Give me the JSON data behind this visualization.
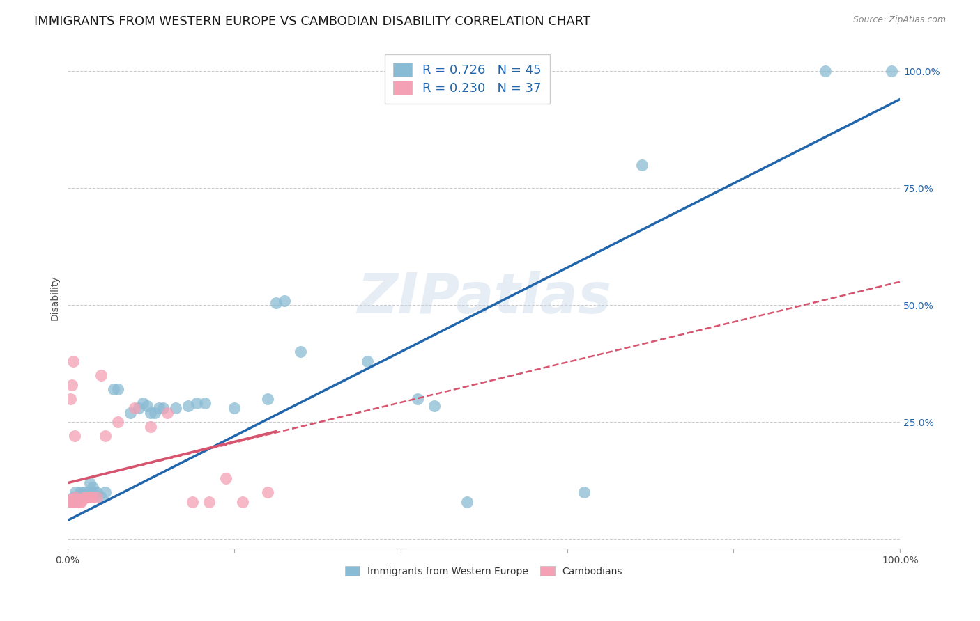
{
  "title": "IMMIGRANTS FROM WESTERN EUROPE VS CAMBODIAN DISABILITY CORRELATION CHART",
  "source": "Source: ZipAtlas.com",
  "ylabel": "Disability",
  "xlim": [
    0,
    1
  ],
  "ylim": [
    -0.02,
    1.05
  ],
  "yticks": [
    0,
    0.25,
    0.5,
    0.75,
    1.0
  ],
  "ytick_labels": [
    "",
    "25.0%",
    "50.0%",
    "75.0%",
    "100.0%"
  ],
  "xticks": [
    0,
    0.2,
    0.4,
    0.6,
    0.8,
    1.0
  ],
  "xtick_labels": [
    "0.0%",
    "",
    "",
    "",
    "",
    "100.0%"
  ],
  "blue_R": "0.726",
  "blue_N": "45",
  "pink_R": "0.230",
  "pink_N": "37",
  "legend_label_blue": "Immigrants from Western Europe",
  "legend_label_pink": "Cambodians",
  "watermark": "ZIPatlas",
  "blue_color": "#8abbd4",
  "pink_color": "#f4a0b5",
  "blue_line_color": "#2166ac",
  "pink_line_color": "#d6546e",
  "blue_scatter": [
    [
      0.005,
      0.08
    ],
    [
      0.007,
      0.09
    ],
    [
      0.009,
      0.1
    ],
    [
      0.01,
      0.09
    ],
    [
      0.012,
      0.09
    ],
    [
      0.014,
      0.09
    ],
    [
      0.015,
      0.1
    ],
    [
      0.017,
      0.1
    ],
    [
      0.018,
      0.095
    ],
    [
      0.02,
      0.095
    ],
    [
      0.022,
      0.1
    ],
    [
      0.025,
      0.1
    ],
    [
      0.027,
      0.12
    ],
    [
      0.03,
      0.11
    ],
    [
      0.032,
      0.1
    ],
    [
      0.035,
      0.1
    ],
    [
      0.04,
      0.09
    ],
    [
      0.045,
      0.1
    ],
    [
      0.055,
      0.32
    ],
    [
      0.06,
      0.32
    ],
    [
      0.075,
      0.27
    ],
    [
      0.085,
      0.28
    ],
    [
      0.09,
      0.29
    ],
    [
      0.095,
      0.285
    ],
    [
      0.1,
      0.27
    ],
    [
      0.105,
      0.27
    ],
    [
      0.11,
      0.28
    ],
    [
      0.115,
      0.28
    ],
    [
      0.13,
      0.28
    ],
    [
      0.145,
      0.285
    ],
    [
      0.155,
      0.29
    ],
    [
      0.165,
      0.29
    ],
    [
      0.2,
      0.28
    ],
    [
      0.24,
      0.3
    ],
    [
      0.25,
      0.505
    ],
    [
      0.26,
      0.51
    ],
    [
      0.28,
      0.4
    ],
    [
      0.36,
      0.38
    ],
    [
      0.42,
      0.3
    ],
    [
      0.44,
      0.285
    ],
    [
      0.48,
      0.08
    ],
    [
      0.62,
      0.1
    ],
    [
      0.69,
      0.8
    ],
    [
      0.91,
      1.0
    ],
    [
      0.99,
      1.0
    ]
  ],
  "pink_scatter": [
    [
      0.003,
      0.08
    ],
    [
      0.004,
      0.085
    ],
    [
      0.005,
      0.08
    ],
    [
      0.006,
      0.085
    ],
    [
      0.007,
      0.08
    ],
    [
      0.008,
      0.08
    ],
    [
      0.009,
      0.09
    ],
    [
      0.01,
      0.08
    ],
    [
      0.011,
      0.085
    ],
    [
      0.012,
      0.08
    ],
    [
      0.013,
      0.085
    ],
    [
      0.014,
      0.085
    ],
    [
      0.015,
      0.08
    ],
    [
      0.016,
      0.08
    ],
    [
      0.017,
      0.085
    ],
    [
      0.018,
      0.085
    ],
    [
      0.02,
      0.09
    ],
    [
      0.022,
      0.09
    ],
    [
      0.025,
      0.09
    ],
    [
      0.028,
      0.09
    ],
    [
      0.03,
      0.09
    ],
    [
      0.035,
      0.09
    ],
    [
      0.04,
      0.35
    ],
    [
      0.06,
      0.25
    ],
    [
      0.08,
      0.28
    ],
    [
      0.1,
      0.24
    ],
    [
      0.12,
      0.27
    ],
    [
      0.005,
      0.33
    ],
    [
      0.007,
      0.38
    ],
    [
      0.15,
      0.08
    ],
    [
      0.17,
      0.08
    ],
    [
      0.19,
      0.13
    ],
    [
      0.21,
      0.08
    ],
    [
      0.24,
      0.1
    ],
    [
      0.003,
      0.3
    ],
    [
      0.008,
      0.22
    ],
    [
      0.045,
      0.22
    ]
  ],
  "background_color": "#ffffff",
  "grid_color": "#cccccc",
  "title_fontsize": 13,
  "axis_label_fontsize": 10,
  "tick_fontsize": 10
}
